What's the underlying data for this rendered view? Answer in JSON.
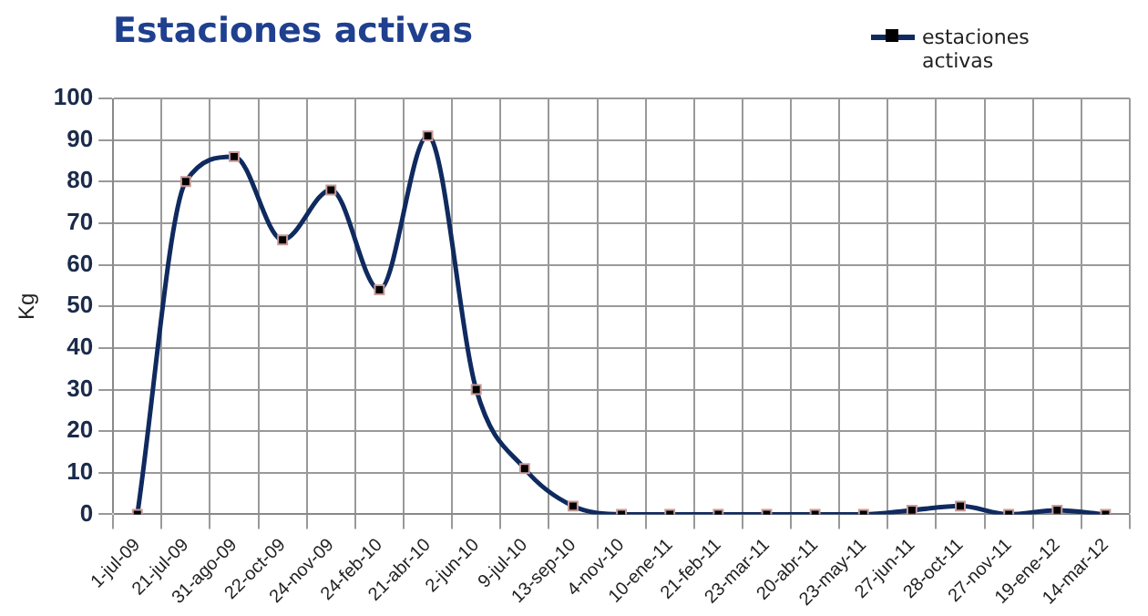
{
  "chart_data": {
    "type": "line",
    "title": "Estaciones activas",
    "ylabel": "Kg",
    "categories": [
      "1-jul-09",
      "21-jul-09",
      "31-ago-09",
      "22-oct-09",
      "24-nov-09",
      "24-feb-10",
      "21-abr-10",
      "2-jun-10",
      "9-jul-10",
      "13-sep-10",
      "4-nov-10",
      "10-ene-11",
      "21-feb-11",
      "23-mar-11",
      "20-abr-11",
      "23-may-11",
      "27-jun-11",
      "28-oct-11",
      "27-nov-11",
      "19-ene-12",
      "14-mar-12"
    ],
    "series": [
      {
        "name": "estaciones activas",
        "color": "#0f2a5f",
        "values": [
          0,
          80,
          86,
          66,
          78,
          54,
          91,
          30,
          11,
          2,
          0,
          0,
          0,
          0,
          0,
          0,
          1,
          2,
          0,
          1,
          0
        ]
      }
    ],
    "ylim": [
      0,
      100
    ],
    "yticks": [
      0,
      10,
      20,
      30,
      40,
      50,
      60,
      70,
      80,
      90,
      100
    ],
    "grid": true,
    "legend": "top right",
    "marker": "square",
    "line_style": "solid"
  }
}
